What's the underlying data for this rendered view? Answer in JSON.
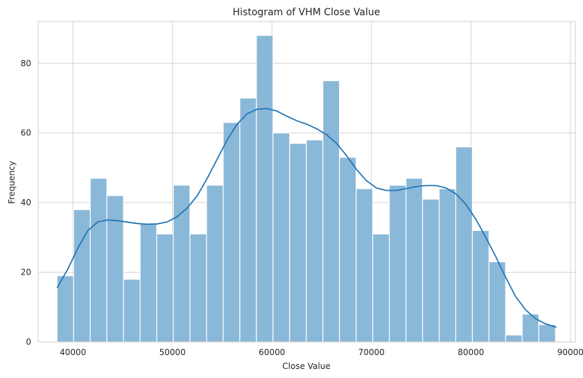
{
  "chart_data": {
    "type": "bar",
    "title": "Histogram of VHM Close Value",
    "xlabel": "Close Value",
    "ylabel": "Frequency",
    "xlim": [
      36500,
      90500
    ],
    "ylim": [
      0,
      92
    ],
    "xticks": [
      40000,
      50000,
      60000,
      70000,
      80000,
      90000
    ],
    "yticks": [
      0,
      20,
      40,
      60,
      80
    ],
    "grid": true,
    "bin_start": 38400,
    "bin_width": 1670,
    "values": [
      19,
      38,
      47,
      42,
      18,
      34,
      31,
      45,
      31,
      45,
      63,
      70,
      88,
      60,
      57,
      58,
      75,
      53,
      44,
      31,
      45,
      47,
      41,
      44,
      56,
      32,
      23,
      2,
      8,
      5
    ],
    "kde": {
      "x": [
        38400,
        39500,
        40500,
        41500,
        42500,
        43500,
        44500,
        45500,
        46500,
        47500,
        48500,
        49500,
        50500,
        51500,
        52500,
        53500,
        54500,
        55500,
        56500,
        57500,
        58500,
        59500,
        60500,
        61500,
        62500,
        63500,
        64500,
        65500,
        66500,
        67500,
        68500,
        69500,
        70500,
        71500,
        72500,
        73500,
        74500,
        75500,
        76500,
        77500,
        78500,
        79500,
        80500,
        81500,
        82500,
        83500,
        84500,
        85500,
        86500,
        87500,
        88600
      ],
      "y": [
        15.5,
        21,
        27,
        32,
        34.5,
        35,
        34.8,
        34.4,
        34,
        33.8,
        33.9,
        34.5,
        36,
        38.5,
        42,
        47,
        52.5,
        58,
        62.5,
        65.5,
        66.8,
        67,
        66.3,
        64.8,
        63.5,
        62.5,
        61.2,
        59.5,
        57,
        53.5,
        49.5,
        46.3,
        44.2,
        43.5,
        43.5,
        44,
        44.6,
        44.9,
        44.9,
        44.2,
        42.5,
        39.5,
        35.2,
        30,
        24.5,
        18.5,
        13,
        9.2,
        6.7,
        5.2,
        4.2
      ]
    },
    "colors": {
      "bar": "#8ab8d8",
      "bar_edge": "#ffffff",
      "line": "#2476b4",
      "grid": "#d3d3d3",
      "axis": "#cccccc"
    }
  }
}
